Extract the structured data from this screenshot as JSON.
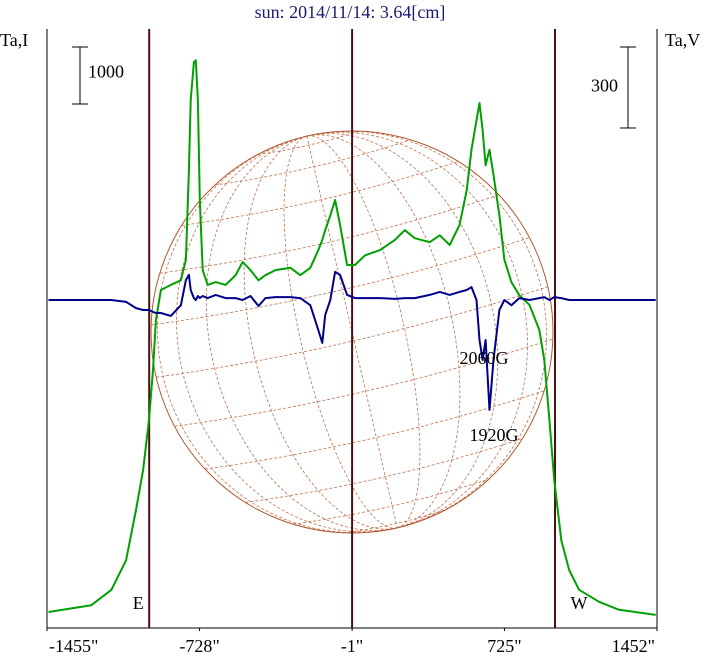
{
  "chart_data": {
    "type": "line",
    "title": "sun: 2014/11/14: 3.64[cm]",
    "y_label": "Ta,I",
    "y2_label": "Ta,V",
    "x": [
      -1448,
      -1244,
      -1148,
      -1078,
      -1031,
      -997,
      -969,
      -950,
      -936,
      -912,
      -865,
      -817,
      -793,
      -779,
      -770,
      -755,
      -746,
      -736,
      -727,
      -713,
      -689,
      -651,
      -604,
      -556,
      -523,
      -485,
      -447,
      -414,
      -366,
      -295,
      -248,
      -200,
      -162,
      -143,
      -129,
      -105,
      -82,
      -58,
      -25,
      13,
      61,
      132,
      203,
      250,
      298,
      369,
      417,
      464,
      511,
      545,
      568,
      592,
      606,
      621,
      635,
      654,
      673,
      701,
      725,
      758,
      796,
      844,
      891,
      915,
      939,
      962,
      996,
      1033,
      1081,
      1176,
      1271,
      1446
    ],
    "xlim": [
      -1455,
      1452
    ],
    "xticks": [
      {
        "value": -1455,
        "label": "-1455\""
      },
      {
        "value": -728,
        "label": "-728\""
      },
      {
        "value": -1,
        "label": "-1\""
      },
      {
        "value": 725,
        "label": "725\""
      },
      {
        "value": 1452,
        "label": "1452\""
      }
    ],
    "ylim": [
      -280,
      10230
    ],
    "y2lim": [
      -1215,
      1004
    ],
    "series": [
      {
        "color": "#00a000",
        "values": [
          0,
          120,
          390,
          910,
          1790,
          2490,
          3370,
          4250,
          5120,
          5650,
          5740,
          5820,
          6180,
          7750,
          8980,
          9650,
          9680,
          8980,
          7230,
          6000,
          5740,
          5790,
          5740,
          5910,
          6140,
          6000,
          5820,
          5910,
          6000,
          6040,
          5910,
          6040,
          6350,
          6530,
          6700,
          6960,
          7230,
          6790,
          6090,
          6090,
          6260,
          6350,
          6530,
          6700,
          6560,
          6490,
          6610,
          6440,
          6790,
          7400,
          8110,
          8630,
          8930,
          8460,
          7840,
          8110,
          7670,
          6960,
          6180,
          5790,
          5560,
          5390,
          4950,
          4420,
          3370,
          2320,
          1260,
          740,
          390,
          180,
          40,
          -50
        ]
      },
      {
        "color": "#00008b",
        "axis": "y2",
        "values": [
          0,
          0,
          0,
          -7,
          -30,
          -37,
          -37,
          -44,
          -48,
          -48,
          -59,
          -19,
          74,
          93,
          37,
          7,
          0,
          15,
          7,
          15,
          7,
          19,
          7,
          7,
          0,
          15,
          -22,
          7,
          11,
          11,
          7,
          -19,
          -111,
          -159,
          -56,
          0,
          104,
          93,
          19,
          7,
          7,
          7,
          4,
          7,
          7,
          19,
          30,
          19,
          30,
          37,
          48,
          0,
          -148,
          -222,
          -148,
          -407,
          -222,
          -37,
          0,
          -19,
          7,
          0,
          7,
          11,
          0,
          11,
          7,
          0,
          0,
          0,
          0,
          0
        ]
      }
    ],
    "scale_bars": [
      {
        "value": 1000,
        "axis": "y"
      },
      {
        "value": 300,
        "axis": "y2"
      }
    ],
    "vlines": [
      -968,
      -1,
      966
    ],
    "limb_labels": [
      "E",
      "W"
    ],
    "annotations": [
      "2060G",
      "1920G"
    ]
  }
}
